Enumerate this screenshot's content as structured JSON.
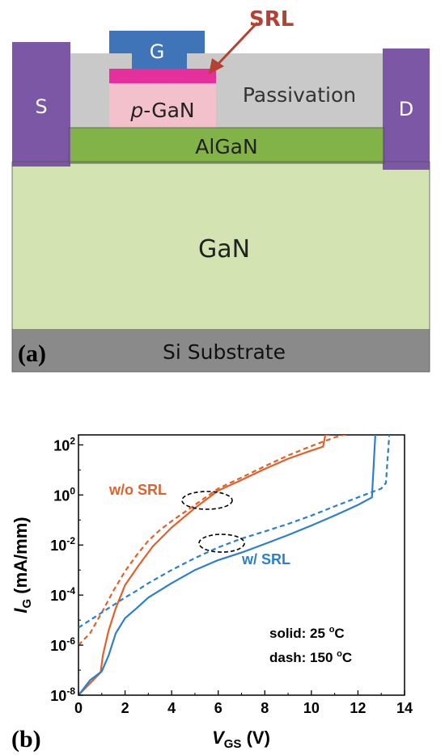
{
  "panel_a": {
    "panel_label": "(a)",
    "layers": {
      "gate": "G",
      "srl": "SRL",
      "pgan_italic": "p",
      "pgan_rest": "-GaN",
      "passivation": "Passivation",
      "source": "S",
      "drain": "D",
      "algan": "AlGaN",
      "gan": "GaN",
      "substrate": "Si  Substrate"
    },
    "colors": {
      "gate": "#3f74b8",
      "contact": "#7c57a5",
      "passivation": "#c9c9c9",
      "algan": "#82b349",
      "gan": "#d3e3b1",
      "substrate": "#8a8a8a",
      "pgan": "#f2c1cc",
      "srl": "#e52f9b",
      "srl_arrow": "#b54133"
    }
  },
  "panel_b": {
    "panel_label": "(b)",
    "y_label_main": "I",
    "y_label_sub": "G",
    "y_label_unit": " (mA/mm)",
    "x_label_main": "V",
    "x_label_sub": "GS",
    "x_label_unit": " (V)",
    "note_solid_prefix": "solid: 25 ",
    "note_dash_prefix": "dash: 150 ",
    "note_sup": "o",
    "note_unit": "C",
    "annot_without": "w/o SRL",
    "annot_with": "w/ SRL"
  },
  "chart_data": {
    "type": "line",
    "xlabel": "VGS (V)",
    "ylabel": "IG (mA/mm)",
    "xlim": [
      0,
      14
    ],
    "ylim_log10": [
      -8,
      2.4
    ],
    "y_scale": "log",
    "x_ticks": [
      "0",
      "2",
      "4",
      "6",
      "8",
      "10",
      "12",
      "14"
    ],
    "y_ticks": [
      {
        "base": "10",
        "exp": "2",
        "value": 100
      },
      {
        "base": "10",
        "exp": "0",
        "value": 1
      },
      {
        "base": "10",
        "exp": "-2",
        "value": 0.01
      },
      {
        "base": "10",
        "exp": "-4",
        "value": 0.0001
      },
      {
        "base": "10",
        "exp": "-6",
        "value": 1e-06
      },
      {
        "base": "10",
        "exp": "-8",
        "value": 1e-08
      }
    ],
    "series": [
      {
        "name": "w/o SRL 25 °C",
        "color": "#e0622a",
        "style": "solid",
        "x": [
          0,
          0.5,
          0.95,
          1.05,
          1.3,
          1.6,
          2.0,
          2.6,
          3.2,
          4.0,
          5.0,
          6.0,
          7.0,
          8.0,
          9.0,
          10.0,
          10.5,
          10.6,
          11.0,
          11.5
        ],
        "y": [
          1e-08,
          3e-08,
          8e-08,
          4e-07,
          4e-06,
          3e-05,
          0.00025,
          0.0016,
          0.009,
          0.05,
          0.3,
          1.5,
          4,
          11,
          28,
          60,
          85,
          250,
          290,
          320
        ]
      },
      {
        "name": "w/o SRL 150 °C",
        "color": "#e0622a",
        "style": "dash",
        "x": [
          0,
          0.5,
          1.0,
          1.5,
          2.0,
          2.5,
          3.0,
          3.5,
          4.0,
          5.0,
          6.0,
          7.0,
          8.0,
          9.0,
          10.0,
          11.0,
          11.7
        ],
        "y": [
          1e-06,
          3e-06,
          2e-05,
          0.00015,
          0.0009,
          0.004,
          0.015,
          0.04,
          0.09,
          0.4,
          1.8,
          5,
          14,
          38,
          90,
          200,
          300
        ]
      },
      {
        "name": "w/ SRL 25 °C",
        "color": "#2d80c8",
        "style": "solid",
        "x": [
          0,
          0.5,
          1.0,
          1.3,
          1.6,
          2.0,
          2.5,
          3.0,
          4.0,
          5.0,
          6.0,
          7.0,
          8.0,
          9.0,
          10.0,
          11.0,
          12.0,
          12.6,
          12.75,
          13.5
        ],
        "y": [
          1e-08,
          4e-08,
          9e-08,
          4e-07,
          3e-06,
          1.2e-05,
          3e-05,
          8e-05,
          0.0003,
          0.001,
          0.0025,
          0.005,
          0.011,
          0.025,
          0.06,
          0.15,
          0.4,
          0.8,
          300,
          300
        ]
      },
      {
        "name": "w/ SRL 150 °C",
        "color": "#2d80c8",
        "style": "dash",
        "x": [
          0,
          0.5,
          1.0,
          1.5,
          2.0,
          2.5,
          3.0,
          4.0,
          5.0,
          6.0,
          7.0,
          8.0,
          9.0,
          10.0,
          11.0,
          12.0,
          13.0,
          13.2,
          13.35,
          13.5
        ],
        "y": [
          5e-06,
          1e-05,
          2e-05,
          4e-05,
          8e-05,
          0.00015,
          0.0003,
          0.001,
          0.003,
          0.008,
          0.018,
          0.035,
          0.07,
          0.15,
          0.35,
          0.8,
          1.8,
          3,
          300,
          300
        ]
      }
    ]
  }
}
